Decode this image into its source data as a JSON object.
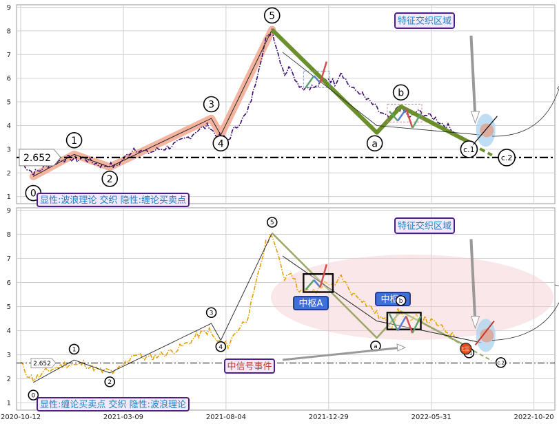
{
  "chart_data": [
    {
      "type": "line",
      "panel": "top",
      "ylim": [
        0.7,
        9.1
      ],
      "yticks": [
        1,
        2,
        3,
        4,
        5,
        6,
        7,
        8,
        9
      ],
      "grid": true,
      "price_color": "#3a0a6e",
      "price_series": [
        [
          0,
          2.65
        ],
        [
          6,
          2.2
        ],
        [
          12,
          2.0
        ],
        [
          18,
          2.1
        ],
        [
          24,
          2.3
        ],
        [
          30,
          2.4
        ],
        [
          36,
          2.5
        ],
        [
          42,
          2.6
        ],
        [
          48,
          2.6
        ],
        [
          54,
          2.55
        ],
        [
          60,
          2.65
        ],
        [
          66,
          2.5
        ],
        [
          72,
          2.4
        ],
        [
          78,
          2.3
        ],
        [
          84,
          2.35
        ],
        [
          90,
          2.25
        ],
        [
          96,
          2.5
        ],
        [
          102,
          2.75
        ],
        [
          108,
          3.05
        ],
        [
          114,
          2.95
        ],
        [
          120,
          2.85
        ],
        [
          126,
          2.9
        ],
        [
          132,
          3.0
        ],
        [
          138,
          3.05
        ],
        [
          144,
          3.15
        ],
        [
          150,
          3.25
        ],
        [
          156,
          3.4
        ],
        [
          162,
          3.55
        ],
        [
          168,
          3.8
        ],
        [
          174,
          3.9
        ],
        [
          180,
          4.0
        ],
        [
          186,
          3.6
        ],
        [
          192,
          3.5
        ],
        [
          198,
          3.4
        ],
        [
          204,
          3.85
        ],
        [
          210,
          4.2
        ],
        [
          216,
          4.5
        ],
        [
          222,
          5.4
        ],
        [
          228,
          6.6
        ],
        [
          234,
          7.6
        ],
        [
          240,
          8.05
        ],
        [
          246,
          7.0
        ],
        [
          252,
          6.2
        ],
        [
          258,
          6.5
        ],
        [
          264,
          5.8
        ],
        [
          270,
          5.6
        ],
        [
          276,
          5.65
        ],
        [
          282,
          5.6
        ],
        [
          288,
          5.9
        ],
        [
          294,
          6.0
        ],
        [
          300,
          5.8
        ],
        [
          306,
          6.3
        ],
        [
          312,
          5.8
        ],
        [
          318,
          5.5
        ],
        [
          324,
          5.4
        ],
        [
          330,
          5.1
        ],
        [
          336,
          4.9
        ],
        [
          342,
          4.6
        ],
        [
          348,
          4.4
        ],
        [
          354,
          4.2
        ],
        [
          360,
          4.8
        ],
        [
          366,
          4.6
        ],
        [
          372,
          4.3
        ],
        [
          378,
          4.6
        ],
        [
          384,
          4.5
        ],
        [
          390,
          4.4
        ],
        [
          396,
          4.3
        ],
        [
          402,
          4.1
        ],
        [
          408,
          3.95
        ],
        [
          414,
          3.75
        ]
      ],
      "waves": [
        {
          "label": "0",
          "x": 12,
          "y": 1.85
        },
        {
          "label": "1",
          "x": 51,
          "y": 2.78
        },
        {
          "label": "2",
          "x": 85,
          "y": 2.25
        },
        {
          "label": "3",
          "x": 182,
          "y": 4.3
        },
        {
          "label": "4",
          "x": 191,
          "y": 3.6
        },
        {
          "label": "5",
          "x": 240,
          "y": 8.05
        },
        {
          "label": "a",
          "x": 340,
          "y": 3.7
        },
        {
          "label": "b",
          "x": 363,
          "y": 4.8
        },
        {
          "label": "c.1",
          "x": 428,
          "y": 3.3
        },
        {
          "label": "c.2",
          "x": 450,
          "y": 2.75
        }
      ],
      "reference_value": 2.652,
      "reference_label": "2.652",
      "info_label": "显性:波浪理论 交织 隐性:缠论买卖点",
      "zone_label": "特征交织区域"
    },
    {
      "type": "line",
      "panel": "bottom",
      "ylim": [
        0.7,
        9.1
      ],
      "yticks": [
        1,
        2,
        3,
        4,
        5,
        6,
        7,
        8,
        9
      ],
      "grid": true,
      "price_color": "#e6a000",
      "reference_value": 2.652,
      "reference_label": "2.652",
      "info_label": "显性:缠论买卖点 交织 隐性:波浪理论",
      "zone_label": "特征交织区域",
      "hub_a_label": "中枢A",
      "hub_b_label": "中枢B",
      "signal_label": "中信号事件",
      "buy_marker_label": "t三"
    }
  ],
  "x_axis": {
    "ticks": [
      "2020-10-12",
      "2021-03-09",
      "2021-08-04",
      "2021-12-29",
      "2022-05-31",
      "2022-10-20"
    ],
    "tick_positions": [
      0,
      98,
      196,
      294,
      392,
      490
    ],
    "xlim": [
      -4,
      510
    ]
  }
}
